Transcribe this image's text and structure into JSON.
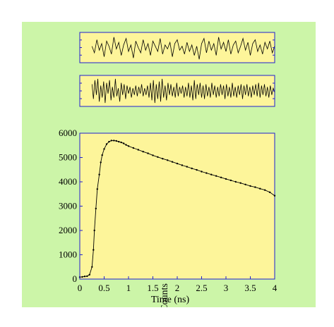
{
  "chart_data": [
    {
      "type": "line",
      "panel": "residuals-1",
      "title": "",
      "xlabel": "",
      "ylabel": "",
      "xlim": [
        0,
        4
      ],
      "grid": false,
      "series": [
        {
          "points": [
            [
              0.25,
              0.1
            ],
            [
              0.3,
              -0.4
            ],
            [
              0.35,
              0.6
            ],
            [
              0.4,
              -0.2
            ],
            [
              0.45,
              0.3
            ],
            [
              0.5,
              -0.7
            ],
            [
              0.55,
              0.5
            ],
            [
              0.6,
              0.1
            ],
            [
              0.65,
              -0.5
            ],
            [
              0.7,
              0.8
            ],
            [
              0.75,
              -0.1
            ],
            [
              0.8,
              0.4
            ],
            [
              0.85,
              -0.6
            ],
            [
              0.9,
              0.2
            ],
            [
              0.95,
              0.7
            ],
            [
              1.0,
              -0.3
            ],
            [
              1.05,
              0.2
            ],
            [
              1.1,
              -0.8
            ],
            [
              1.15,
              0.5
            ],
            [
              1.2,
              0.0
            ],
            [
              1.25,
              -0.4
            ],
            [
              1.3,
              0.6
            ],
            [
              1.35,
              -0.2
            ],
            [
              1.4,
              0.3
            ],
            [
              1.45,
              -0.6
            ],
            [
              1.5,
              0.5
            ],
            [
              1.55,
              0.1
            ],
            [
              1.6,
              -0.3
            ],
            [
              1.65,
              0.7
            ],
            [
              1.7,
              -0.5
            ],
            [
              1.75,
              0.2
            ],
            [
              1.8,
              -0.1
            ],
            [
              1.85,
              0.4
            ],
            [
              1.9,
              -0.7
            ],
            [
              1.95,
              0.3
            ],
            [
              2.0,
              0.6
            ],
            [
              2.05,
              -0.2
            ],
            [
              2.1,
              0.1
            ],
            [
              2.15,
              -0.5
            ],
            [
              2.2,
              0.4
            ],
            [
              2.25,
              -0.3
            ],
            [
              2.3,
              0.2
            ],
            [
              2.35,
              -0.6
            ],
            [
              2.4,
              0.1
            ],
            [
              2.45,
              -0.9
            ],
            [
              2.5,
              0.3
            ],
            [
              2.55,
              0.7
            ],
            [
              2.6,
              -0.4
            ],
            [
              2.65,
              0.5
            ],
            [
              2.7,
              -0.2
            ],
            [
              2.75,
              0.3
            ],
            [
              2.8,
              -0.6
            ],
            [
              2.85,
              0.8
            ],
            [
              2.9,
              -0.1
            ],
            [
              2.95,
              0.4
            ],
            [
              3.0,
              -0.3
            ],
            [
              3.05,
              0.6
            ],
            [
              3.1,
              -0.5
            ],
            [
              3.15,
              0.2
            ],
            [
              3.2,
              0.5
            ],
            [
              3.25,
              -0.4
            ],
            [
              3.3,
              0.1
            ],
            [
              3.35,
              0.7
            ],
            [
              3.4,
              -0.2
            ],
            [
              3.45,
              0.4
            ],
            [
              3.5,
              -0.6
            ],
            [
              3.55,
              0.3
            ],
            [
              3.6,
              0.6
            ],
            [
              3.65,
              -0.3
            ],
            [
              3.7,
              0.2
            ],
            [
              3.75,
              -0.5
            ],
            [
              3.8,
              0.4
            ],
            [
              3.85,
              -0.1
            ],
            [
              3.9,
              0.5
            ],
            [
              3.95,
              -0.4
            ],
            [
              4.0,
              0.1
            ]
          ]
        }
      ]
    },
    {
      "type": "line",
      "panel": "residuals-2",
      "title": "",
      "xlabel": "",
      "ylabel": "",
      "xlim": [
        0,
        4
      ],
      "grid": false,
      "series": [
        {
          "points": [
            [
              0.25,
              0.5
            ],
            [
              0.28,
              -0.6
            ],
            [
              0.31,
              0.8
            ],
            [
              0.34,
              -0.3
            ],
            [
              0.37,
              0.9
            ],
            [
              0.4,
              -0.8
            ],
            [
              0.43,
              0.4
            ],
            [
              0.46,
              -0.5
            ],
            [
              0.49,
              0.7
            ],
            [
              0.52,
              -0.9
            ],
            [
              0.55,
              0.6
            ],
            [
              0.58,
              -0.2
            ],
            [
              0.61,
              0.8
            ],
            [
              0.64,
              -0.7
            ],
            [
              0.67,
              0.3
            ],
            [
              0.7,
              -0.5
            ],
            [
              0.73,
              0.9
            ],
            [
              0.76,
              -0.4
            ],
            [
              0.79,
              0.2
            ],
            [
              0.82,
              -0.8
            ],
            [
              0.85,
              0.6
            ],
            [
              0.88,
              -0.3
            ],
            [
              0.91,
              0.5
            ],
            [
              0.94,
              -0.6
            ],
            [
              0.97,
              0.4
            ],
            [
              1.0,
              -0.2
            ],
            [
              1.03,
              0.3
            ],
            [
              1.06,
              -0.5
            ],
            [
              1.09,
              0.2
            ],
            [
              1.12,
              -0.3
            ],
            [
              1.15,
              0.4
            ],
            [
              1.18,
              -0.4
            ],
            [
              1.21,
              0.3
            ],
            [
              1.24,
              -0.2
            ],
            [
              1.27,
              0.5
            ],
            [
              1.3,
              -0.4
            ],
            [
              1.33,
              0.2
            ],
            [
              1.36,
              -0.3
            ],
            [
              1.39,
              0.4
            ],
            [
              1.42,
              -0.5
            ],
            [
              1.45,
              0.6
            ],
            [
              1.48,
              -0.7
            ],
            [
              1.51,
              0.8
            ],
            [
              1.54,
              -0.9
            ],
            [
              1.57,
              0.5
            ],
            [
              1.6,
              -0.6
            ],
            [
              1.63,
              0.7
            ],
            [
              1.66,
              -0.8
            ],
            [
              1.69,
              0.9
            ],
            [
              1.72,
              -0.5
            ],
            [
              1.75,
              0.4
            ],
            [
              1.78,
              -0.7
            ],
            [
              1.81,
              0.6
            ],
            [
              1.84,
              -0.3
            ],
            [
              1.87,
              0.5
            ],
            [
              1.9,
              -0.4
            ],
            [
              1.93,
              0.3
            ],
            [
              1.96,
              -0.5
            ],
            [
              1.99,
              0.6
            ],
            [
              2.02,
              -0.4
            ],
            [
              2.05,
              0.3
            ],
            [
              2.08,
              -0.2
            ],
            [
              2.11,
              0.4
            ],
            [
              2.14,
              -0.5
            ],
            [
              2.17,
              0.3
            ],
            [
              2.2,
              -0.4
            ],
            [
              2.23,
              0.6
            ],
            [
              2.26,
              -0.5
            ],
            [
              2.29,
              0.4
            ],
            [
              2.32,
              -0.7
            ],
            [
              2.35,
              0.8
            ],
            [
              2.38,
              -0.6
            ],
            [
              2.41,
              0.5
            ],
            [
              2.44,
              -0.3
            ],
            [
              2.47,
              0.6
            ],
            [
              2.5,
              -0.5
            ],
            [
              2.53,
              0.4
            ],
            [
              2.56,
              -0.6
            ],
            [
              2.59,
              0.5
            ],
            [
              2.62,
              -0.4
            ],
            [
              2.65,
              0.3
            ],
            [
              2.68,
              -0.5
            ],
            [
              2.71,
              0.6
            ],
            [
              2.74,
              -0.3
            ],
            [
              2.77,
              0.4
            ],
            [
              2.8,
              -0.5
            ],
            [
              2.83,
              0.3
            ],
            [
              2.86,
              -0.4
            ],
            [
              2.89,
              0.5
            ],
            [
              2.92,
              -0.3
            ],
            [
              2.95,
              0.4
            ],
            [
              2.98,
              -0.6
            ],
            [
              3.01,
              0.5
            ],
            [
              3.04,
              -0.4
            ],
            [
              3.07,
              0.3
            ],
            [
              3.1,
              -0.5
            ],
            [
              3.13,
              0.6
            ],
            [
              3.16,
              -0.4
            ],
            [
              3.19,
              0.3
            ],
            [
              3.22,
              -0.5
            ],
            [
              3.25,
              0.4
            ],
            [
              3.28,
              -0.3
            ],
            [
              3.31,
              0.5
            ],
            [
              3.34,
              -0.6
            ],
            [
              3.37,
              0.4
            ],
            [
              3.4,
              -0.3
            ],
            [
              3.43,
              0.5
            ],
            [
              3.46,
              -0.4
            ],
            [
              3.49,
              0.3
            ],
            [
              3.52,
              -0.5
            ],
            [
              3.55,
              0.4
            ],
            [
              3.58,
              -0.3
            ],
            [
              3.61,
              0.5
            ],
            [
              3.64,
              -0.4
            ],
            [
              3.67,
              0.6
            ],
            [
              3.7,
              -0.5
            ],
            [
              3.73,
              0.4
            ],
            [
              3.76,
              -0.3
            ],
            [
              3.79,
              0.5
            ],
            [
              3.82,
              -0.4
            ],
            [
              3.85,
              0.3
            ],
            [
              3.88,
              -0.5
            ],
            [
              3.91,
              0.4
            ],
            [
              3.94,
              -0.3
            ],
            [
              3.97,
              0.2
            ],
            [
              4.0,
              -0.1
            ]
          ]
        }
      ]
    },
    {
      "type": "scatter",
      "panel": "main",
      "title": "",
      "xlabel": "Time (ns)",
      "ylabel": "Counts",
      "xlim": [
        0,
        4
      ],
      "ylim": [
        0,
        6000
      ],
      "xticks": [
        "0",
        "0.5",
        "1",
        "1.5",
        "2",
        "2.5",
        "3",
        "3.5",
        "4"
      ],
      "yticks": [
        "0",
        "1000",
        "2000",
        "3000",
        "4000",
        "5000",
        "6000"
      ],
      "grid": false,
      "legend": "none",
      "series": [
        {
          "name": "",
          "points": [
            [
              0.0,
              80
            ],
            [
              0.05,
              90
            ],
            [
              0.1,
              110
            ],
            [
              0.15,
              120
            ],
            [
              0.2,
              180
            ],
            [
              0.25,
              500
            ],
            [
              0.28,
              1200
            ],
            [
              0.3,
              2000
            ],
            [
              0.33,
              2900
            ],
            [
              0.36,
              3700
            ],
            [
              0.4,
              4300
            ],
            [
              0.43,
              4800
            ],
            [
              0.46,
              5100
            ],
            [
              0.5,
              5350
            ],
            [
              0.55,
              5550
            ],
            [
              0.6,
              5650
            ],
            [
              0.65,
              5700
            ],
            [
              0.7,
              5700
            ],
            [
              0.75,
              5680
            ],
            [
              0.8,
              5650
            ],
            [
              0.85,
              5620
            ],
            [
              0.9,
              5580
            ],
            [
              0.95,
              5520
            ],
            [
              1.0,
              5470
            ],
            [
              1.1,
              5390
            ],
            [
              1.2,
              5320
            ],
            [
              1.3,
              5240
            ],
            [
              1.4,
              5170
            ],
            [
              1.5,
              5090
            ],
            [
              1.6,
              5020
            ],
            [
              1.7,
              4950
            ],
            [
              1.8,
              4890
            ],
            [
              1.9,
              4820
            ],
            [
              2.0,
              4750
            ],
            [
              2.1,
              4680
            ],
            [
              2.2,
              4620
            ],
            [
              2.3,
              4550
            ],
            [
              2.4,
              4490
            ],
            [
              2.5,
              4420
            ],
            [
              2.6,
              4360
            ],
            [
              2.7,
              4300
            ],
            [
              2.8,
              4240
            ],
            [
              2.9,
              4180
            ],
            [
              3.0,
              4120
            ],
            [
              3.1,
              4060
            ],
            [
              3.2,
              4000
            ],
            [
              3.3,
              3950
            ],
            [
              3.4,
              3890
            ],
            [
              3.5,
              3830
            ],
            [
              3.6,
              3780
            ],
            [
              3.7,
              3720
            ],
            [
              3.8,
              3660
            ],
            [
              3.9,
              3570
            ],
            [
              4.0,
              3430
            ]
          ]
        }
      ]
    }
  ]
}
